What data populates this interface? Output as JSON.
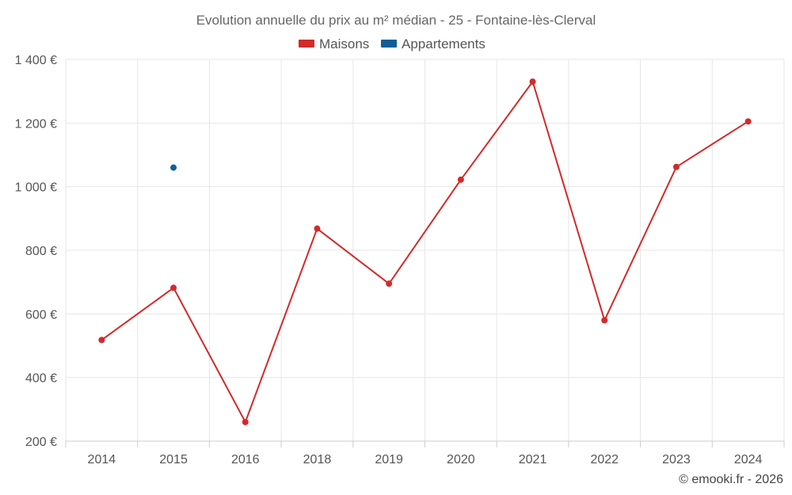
{
  "chart_data": {
    "type": "line",
    "title": "Evolution annuelle du prix au m² médian - 25 - Fontaine-lès-Clerval",
    "categories": [
      "2014",
      "2015",
      "2016",
      "2018",
      "2019",
      "2020",
      "2021",
      "2022",
      "2023",
      "2024"
    ],
    "ylim": [
      200,
      1400
    ],
    "yticks": [
      200,
      400,
      600,
      800,
      1000,
      1200,
      1400
    ],
    "ytick_labels": [
      "200 €",
      "400 €",
      "600 €",
      "800 €",
      "1 000 €",
      "1 200 €",
      "1 400 €"
    ],
    "xlabel": "",
    "ylabel": "",
    "grid": true,
    "legend_position": "top-center",
    "series": [
      {
        "name": "Maisons",
        "color": "#d32a2a",
        "values": [
          518,
          682,
          260,
          868,
          695,
          1022,
          1330,
          580,
          1062,
          1205
        ]
      },
      {
        "name": "Appartements",
        "color": "#0d5f98",
        "values": [
          null,
          1060,
          null,
          null,
          null,
          null,
          null,
          null,
          null,
          null
        ]
      }
    ]
  },
  "credit": "© emooki.fr - 2026"
}
